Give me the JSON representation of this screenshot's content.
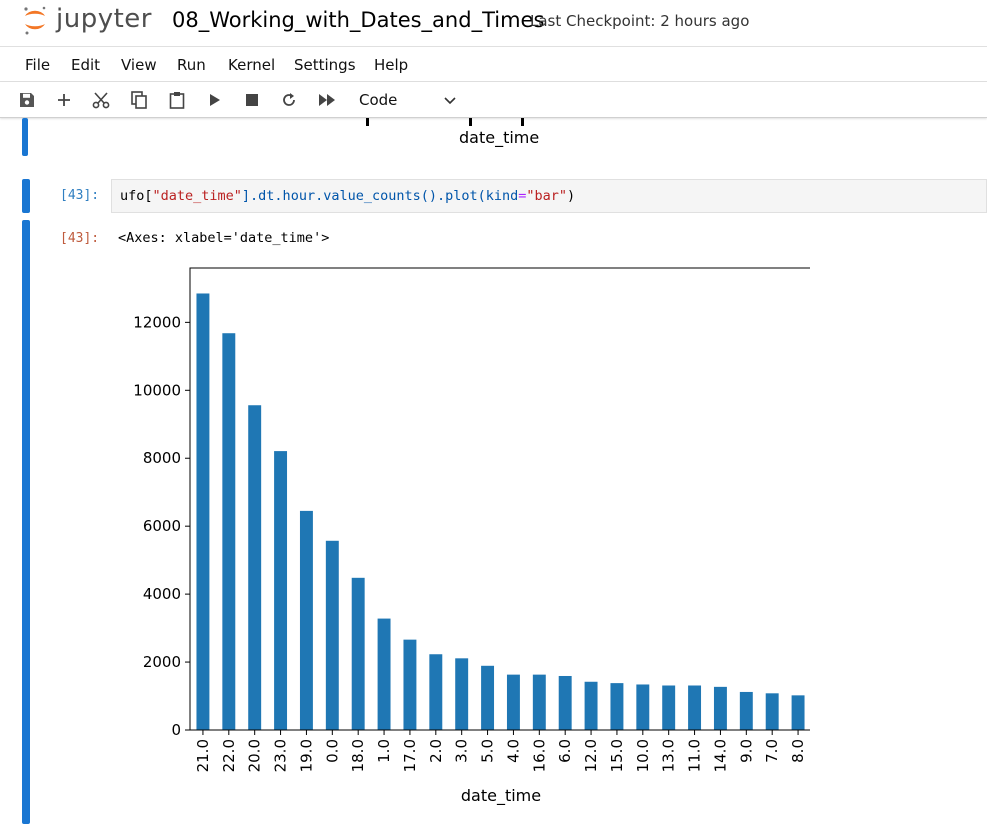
{
  "header": {
    "logo_text": "jupyter",
    "notebook_title": "08_Working_with_Dates_and_Times",
    "checkpoint": "Last Checkpoint: 2 hours ago"
  },
  "menu": [
    "File",
    "Edit",
    "View",
    "Run",
    "Kernel",
    "Settings",
    "Help"
  ],
  "toolbar": {
    "icons": [
      "save-icon",
      "add-icon",
      "cut-icon",
      "copy-icon",
      "paste-icon",
      "run-icon",
      "stop-icon",
      "restart-icon",
      "fast-forward-icon"
    ],
    "cell_type": "Code"
  },
  "prev_output": {
    "xlabel": "date_time"
  },
  "cell": {
    "in_prompt": "[43]:",
    "out_prompt": "[43]:",
    "code_parts": [
      {
        "t": "ufo[",
        "c": "#000000"
      },
      {
        "t": "\"date_time\"",
        "c": "#ba2121"
      },
      {
        "t": "].dt.hour.value_counts().plot(kind",
        "c": "#0055aa"
      },
      {
        "t": "=",
        "c": "#aa22ff"
      },
      {
        "t": "\"bar\"",
        "c": "#ba2121"
      },
      {
        "t": ")",
        "c": "#000000"
      }
    ],
    "output_text": "<Axes: xlabel='date_time'>"
  },
  "colors": {
    "bar": "#1f77b4",
    "accent": "#1976d2",
    "prompt_in": "#307fc1",
    "prompt_out": "#bf5b3d"
  },
  "chart_data": {
    "type": "bar",
    "categories": [
      "21.0",
      "22.0",
      "20.0",
      "23.0",
      "19.0",
      "0.0",
      "18.0",
      "1.0",
      "17.0",
      "2.0",
      "3.0",
      "5.0",
      "4.0",
      "16.0",
      "6.0",
      "12.0",
      "15.0",
      "10.0",
      "13.0",
      "11.0",
      "14.0",
      "9.0",
      "7.0",
      "8.0"
    ],
    "values": [
      12850,
      11680,
      9560,
      8210,
      6450,
      5570,
      4480,
      3280,
      2660,
      2230,
      2110,
      1890,
      1630,
      1630,
      1590,
      1420,
      1380,
      1340,
      1310,
      1310,
      1270,
      1120,
      1080,
      1020
    ],
    "xlabel": "date_time",
    "ylabel": "",
    "ylim": [
      0,
      13600
    ],
    "yticks": [
      0,
      2000,
      4000,
      6000,
      8000,
      10000,
      12000
    ],
    "ytick_labels": [
      "0",
      "2000",
      "4000",
      "6000",
      "8000",
      "10000",
      "12000"
    ],
    "grid": false,
    "legend": "none"
  }
}
